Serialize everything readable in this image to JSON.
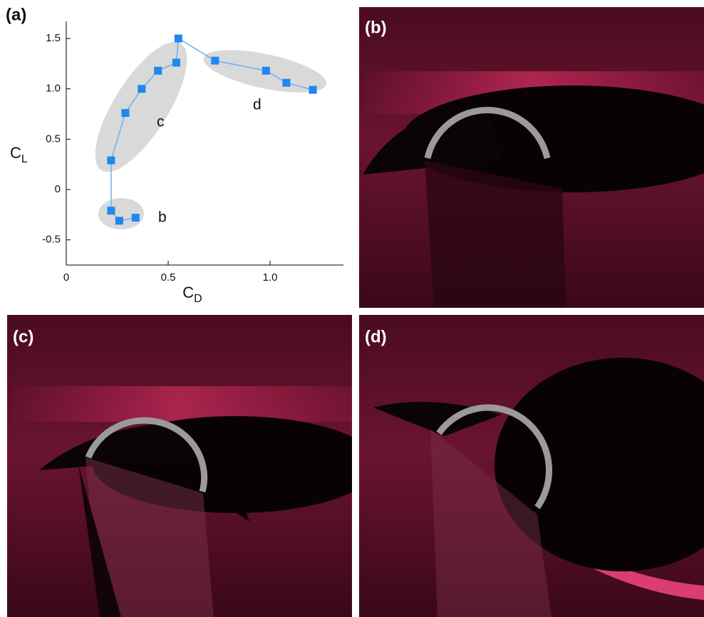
{
  "chart_data": {
    "type": "line",
    "panel_label": "(a)",
    "xlabel_symbol": "C",
    "xlabel_subscript": "D",
    "ylabel_symbol": "C",
    "ylabel_subscript": "L",
    "x": [
      0.34,
      0.26,
      0.22,
      0.22,
      0.29,
      0.37,
      0.45,
      0.54,
      0.55,
      0.73,
      0.98,
      1.08,
      1.21
    ],
    "y": [
      -0.28,
      -0.31,
      -0.21,
      0.29,
      0.76,
      1.0,
      1.18,
      1.26,
      1.5,
      1.28,
      1.18,
      1.06,
      0.99
    ],
    "line_color": "#6ab0f0",
    "marker_color": "#1e88f0",
    "xlim": [
      0,
      1.36
    ],
    "ylim": [
      -0.75,
      1.67
    ],
    "xticks": [
      0,
      0.5,
      {
        "value": 1,
        "label": "1.0"
      }
    ],
    "yticks": [
      -0.5,
      0,
      0.5,
      {
        "value": 1,
        "label": "1.0"
      },
      1.5
    ],
    "annotations": [
      "b",
      "c",
      "d"
    ]
  },
  "photos": [
    {
      "label": "(b)"
    },
    {
      "label": "(c)"
    },
    {
      "label": "(d)"
    }
  ]
}
